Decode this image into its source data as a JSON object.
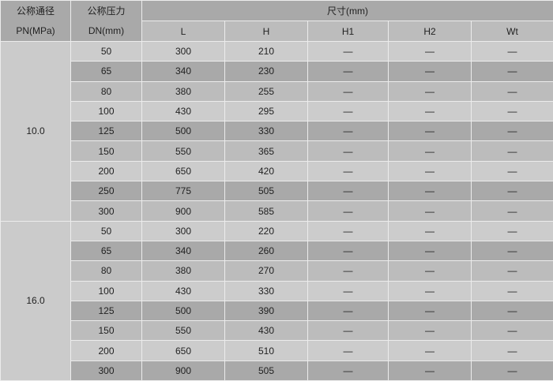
{
  "header": {
    "pn_label": "公称通径",
    "pn_unit": "PN(MPa)",
    "dn_label": "公称压力",
    "dn_unit": "DN(mm)",
    "dims_label": "尺寸(mm)",
    "cols": [
      "L",
      "H",
      "H1",
      "H2",
      "Wt"
    ]
  },
  "groups": [
    {
      "pn": "10.0",
      "rows": [
        [
          "50",
          "300",
          "210",
          "—",
          "—",
          "—"
        ],
        [
          "65",
          "340",
          "230",
          "—",
          "—",
          "—"
        ],
        [
          "80",
          "380",
          "255",
          "—",
          "—",
          "—"
        ],
        [
          "100",
          "430",
          "295",
          "—",
          "—",
          "—"
        ],
        [
          "125",
          "500",
          "330",
          "—",
          "—",
          "—"
        ],
        [
          "150",
          "550",
          "365",
          "—",
          "—",
          "—"
        ],
        [
          "200",
          "650",
          "420",
          "—",
          "—",
          "—"
        ],
        [
          "250",
          "775",
          "505",
          "—",
          "—",
          "—"
        ],
        [
          "300",
          "900",
          "585",
          "—",
          "—",
          "—"
        ]
      ]
    },
    {
      "pn": "16.0",
      "rows": [
        [
          "50",
          "300",
          "220",
          "—",
          "—",
          "—"
        ],
        [
          "65",
          "340",
          "260",
          "—",
          "—",
          "—"
        ],
        [
          "80",
          "380",
          "270",
          "—",
          "—",
          "—"
        ],
        [
          "100",
          "430",
          "330",
          "—",
          "—",
          "—"
        ],
        [
          "125",
          "500",
          "390",
          "—",
          "—",
          "—"
        ],
        [
          "150",
          "550",
          "430",
          "—",
          "—",
          "—"
        ],
        [
          "200",
          "650",
          "510",
          "—",
          "—",
          "—"
        ],
        [
          "300",
          "900",
          "505",
          "—",
          "—",
          "—"
        ]
      ]
    }
  ]
}
